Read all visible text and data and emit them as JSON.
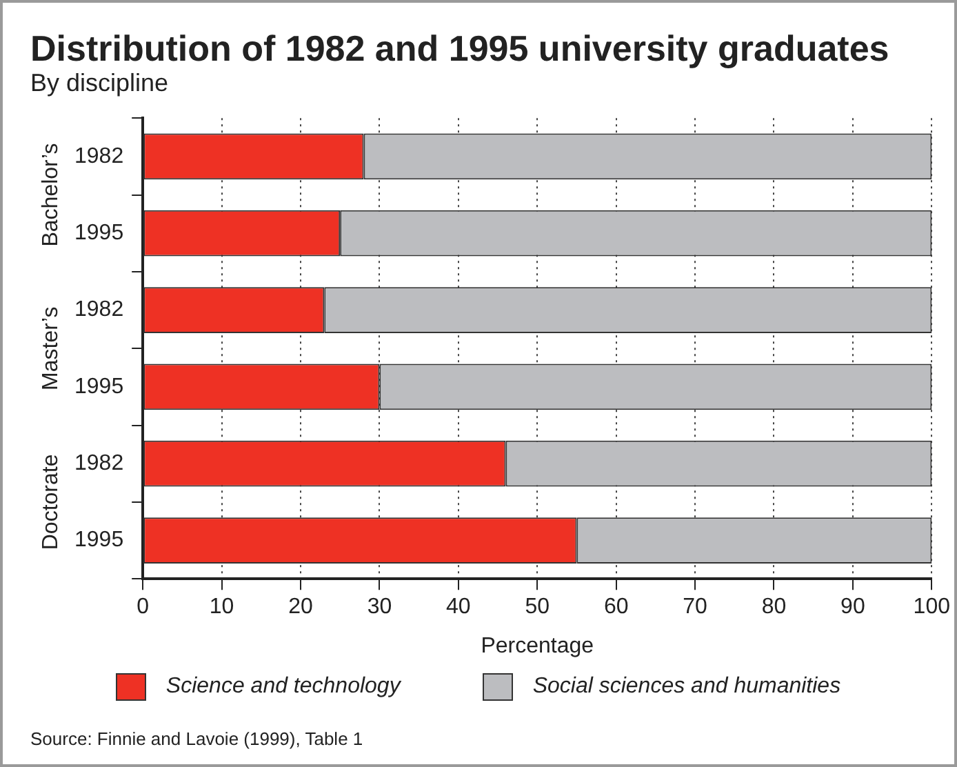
{
  "chart_data": {
    "type": "bar",
    "orientation": "horizontal",
    "stacked": true,
    "title": "Distribution of 1982 and 1995 university graduates",
    "subtitle": "By discipline",
    "xlabel": "Percentage",
    "categories": [
      "1982",
      "1995",
      "1982",
      "1995",
      "1982",
      "1995"
    ],
    "series": [
      {
        "name": "Science and technology",
        "color": "#ee3124",
        "values": [
          28,
          25,
          23,
          30,
          46,
          55
        ]
      },
      {
        "name": "Social sciences and humanities",
        "color": "#bcbdc0",
        "values": [
          72,
          75,
          77,
          70,
          54,
          45
        ]
      }
    ],
    "xlim": [
      0,
      100
    ],
    "xticks": [
      0,
      10,
      20,
      30,
      40,
      50,
      60,
      70,
      80,
      90,
      100
    ],
    "grid": "x",
    "legend": "bottom",
    "annotations": [
      "Bachelor’s",
      "Master’s",
      "Doctorate",
      "Source: Finnie and Lavoie (1999), Table 1"
    ]
  }
}
